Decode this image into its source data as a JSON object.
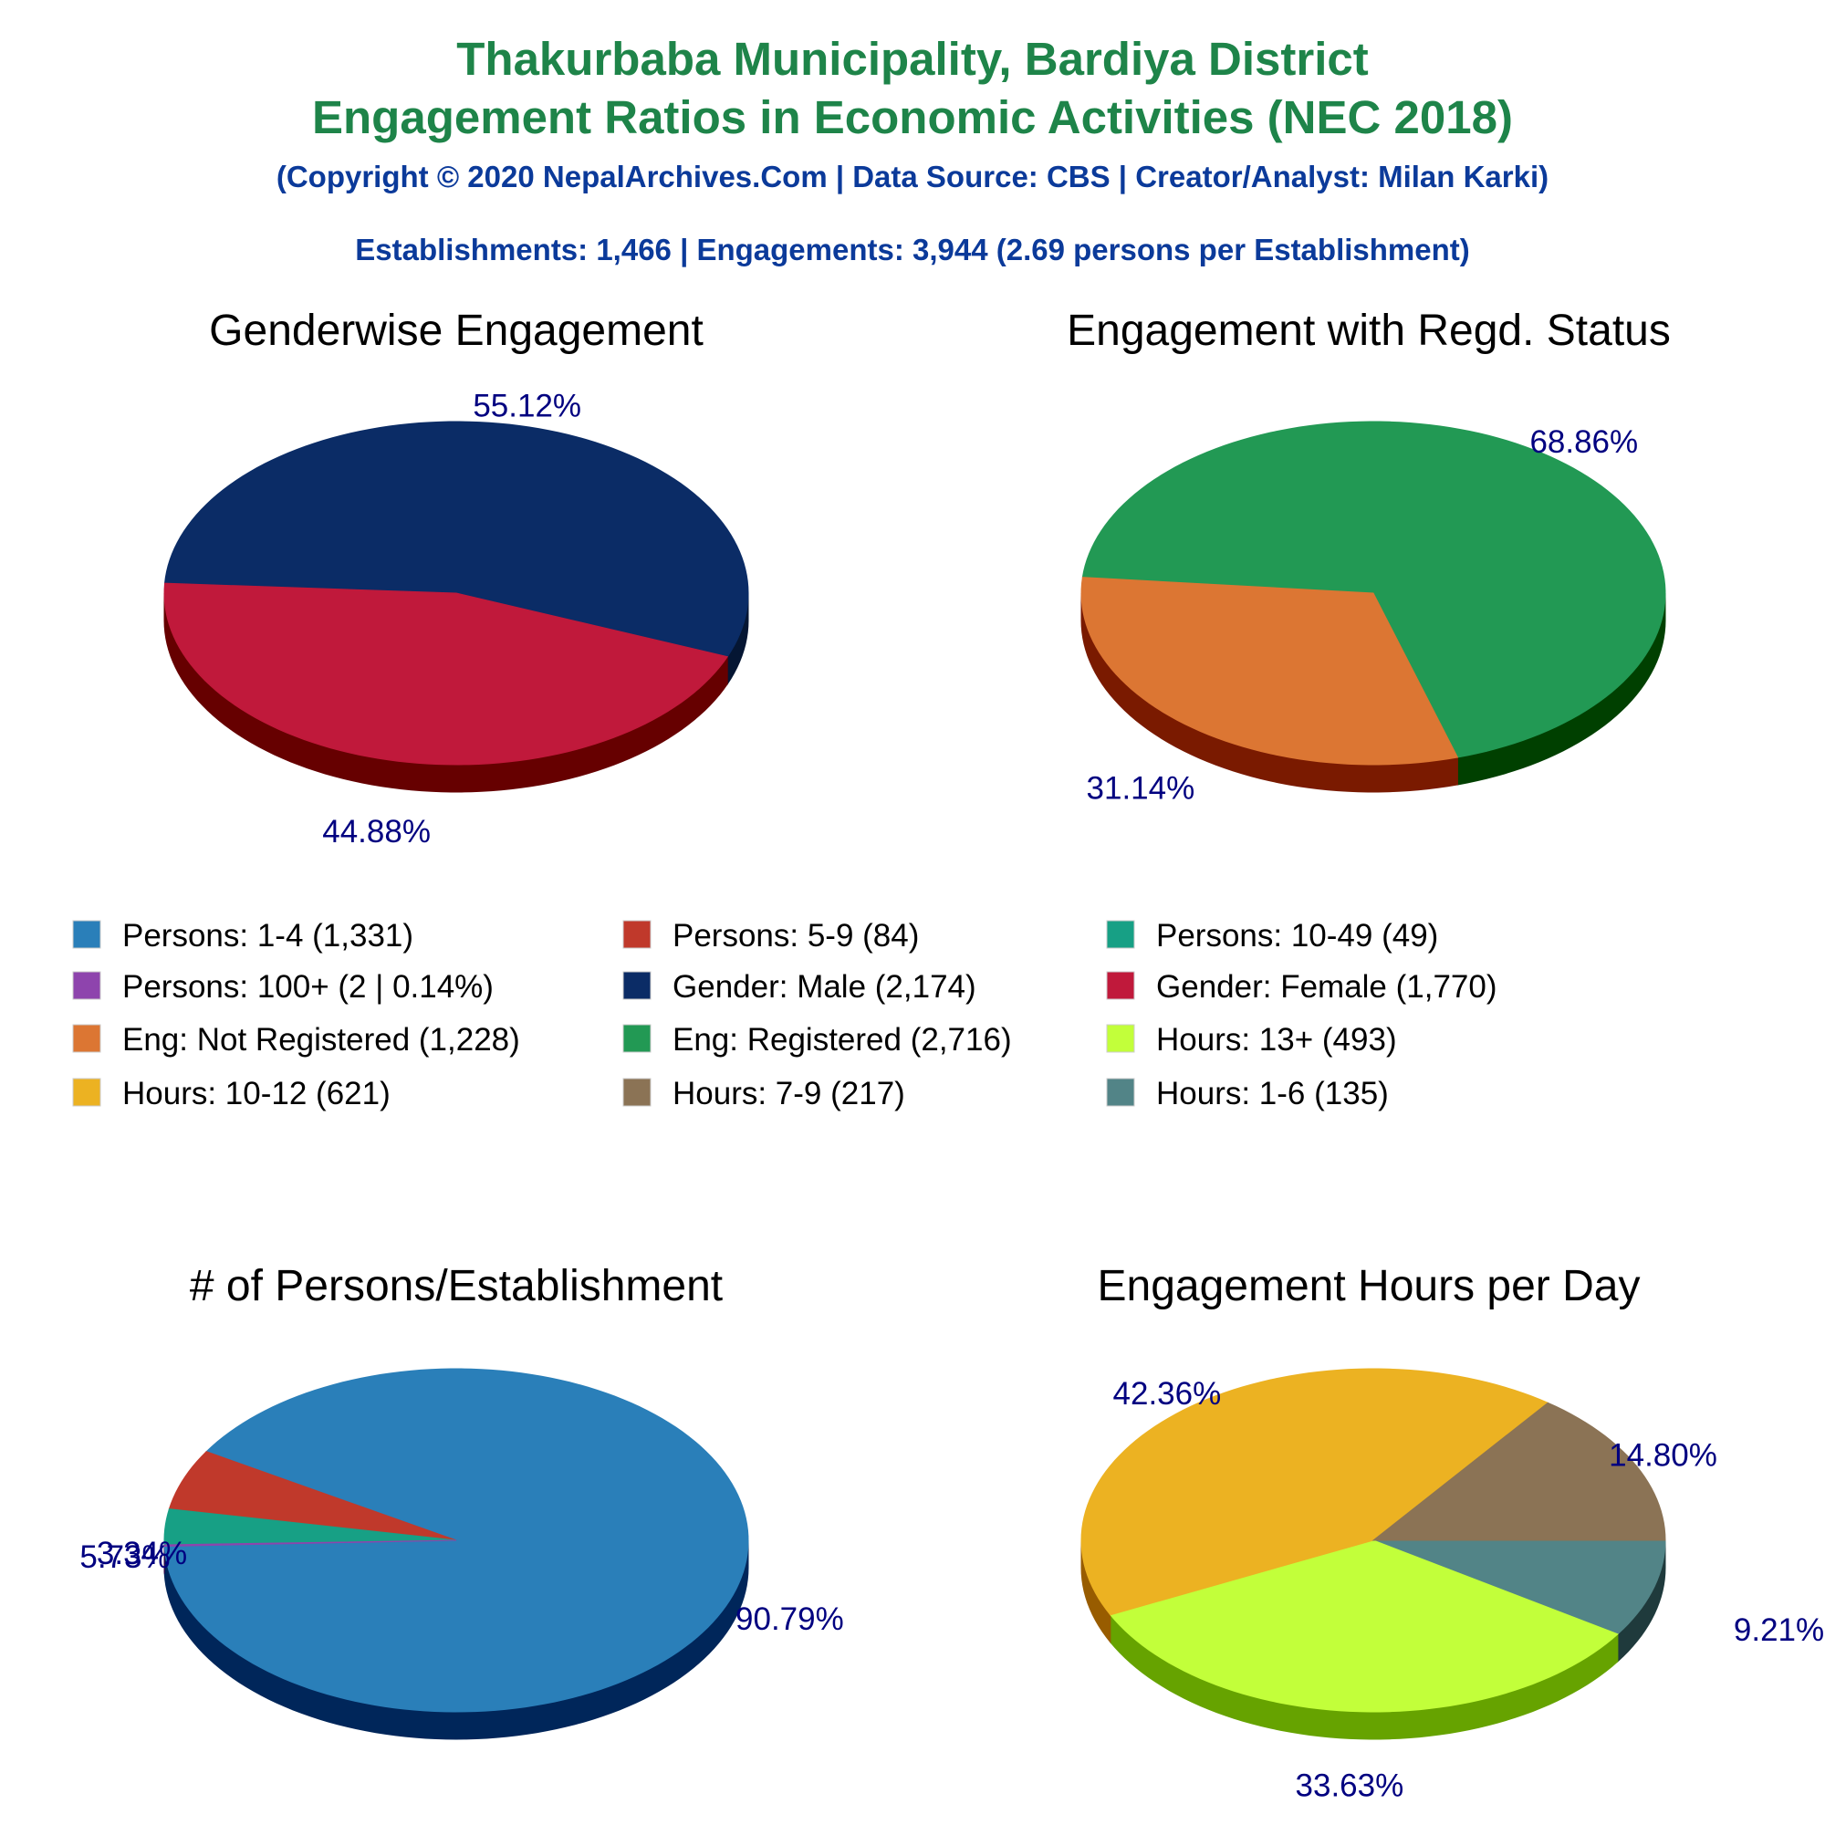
{
  "header": {
    "title_line1": "Thakurbaba Municipality, Bardiya District",
    "title_line2": "Engagement Ratios in Economic Activities (NEC 2018)",
    "copyright": "(Copyright © 2020 NepalArchives.Com | Data Source: CBS | Creator/Analyst: Milan Karki)",
    "summary": "Establishments: 1,466 | Engagements: 3,944 (2.69 persons per Establishment)"
  },
  "legend": {
    "items": [
      {
        "label": "Persons: 1-4 (1,331)",
        "color": "#2a7fb9"
      },
      {
        "label": "Persons: 5-9 (84)",
        "color": "#c0392b"
      },
      {
        "label": "Persons: 10-49 (49)",
        "color": "#17a085"
      },
      {
        "label": "Persons: 100+ (2 | 0.14%)",
        "color": "#8e44ad"
      },
      {
        "label": "Gender: Male (2,174)",
        "color": "#0b2c66"
      },
      {
        "label": "Gender: Female (1,770)",
        "color": "#c0193b"
      },
      {
        "label": "Eng: Not Registered (1,228)",
        "color": "#dc7633"
      },
      {
        "label": "Eng: Registered (2,716)",
        "color": "#229954"
      },
      {
        "label": "Hours: 13+ (493)",
        "color": "#c2ff3a"
      },
      {
        "label": "Hours: 10-12 (621)",
        "color": "#ecb222"
      },
      {
        "label": "Hours: 7-9 (217)",
        "color": "#8b7355"
      },
      {
        "label": "Hours: 1-6 (135)",
        "color": "#528487"
      }
    ]
  },
  "chart_data": [
    {
      "type": "pie",
      "title": "Genderwise Engagement",
      "slices": [
        {
          "name": "Gender: Male",
          "value": 2174,
          "percent": 55.12,
          "label": "55.12%",
          "color": "#0b2c66",
          "side_color": "#051633"
        },
        {
          "name": "Gender: Female",
          "value": 1770,
          "percent": 44.88,
          "label": "44.88%",
          "color": "#c0193b",
          "side_color": "#660000"
        }
      ]
    },
    {
      "type": "pie",
      "title": "Engagement with Regd. Status",
      "slices": [
        {
          "name": "Eng: Registered",
          "value": 2716,
          "percent": 68.86,
          "label": "68.86%",
          "color": "#229954",
          "side_color": "#004000"
        },
        {
          "name": "Eng: Not Registered",
          "value": 1228,
          "percent": 31.14,
          "label": "31.14%",
          "color": "#dc7633",
          "side_color": "#7a1a00"
        }
      ]
    },
    {
      "type": "pie",
      "title": "# of Persons/Establishment",
      "slices": [
        {
          "name": "Persons: 1-4",
          "value": 1331,
          "percent": 90.79,
          "label": "90.79%",
          "color": "#2a7fb9",
          "side_color": "#00265a"
        },
        {
          "name": "Persons: 5-9",
          "value": 84,
          "percent": 5.73,
          "label": "5.73%",
          "color": "#c0392b",
          "side_color": "#6a0000"
        },
        {
          "name": "Persons: 10-49",
          "value": 49,
          "percent": 3.34,
          "label": "3.34%",
          "color": "#17a085",
          "side_color": "#003a2a"
        },
        {
          "name": "Persons: 100+",
          "value": 2,
          "percent": 0.14,
          "label": "",
          "color": "#8e44ad",
          "side_color": "#3a004a"
        }
      ]
    },
    {
      "type": "pie",
      "title": "Engagement Hours per Day",
      "slices": [
        {
          "name": "Hours: 1-6",
          "value": 135,
          "percent": 9.21,
          "label": "9.21%",
          "color": "#528487",
          "side_color": "#1f3a3c"
        },
        {
          "name": "Hours: 13+",
          "value": 493,
          "percent": 33.63,
          "label": "33.63%",
          "color": "#c2ff3a",
          "side_color": "#66a300"
        },
        {
          "name": "Hours: 10-12",
          "value": 621,
          "percent": 42.36,
          "label": "42.36%",
          "color": "#ecb222",
          "side_color": "#985c00"
        },
        {
          "name": "Hours: 7-9",
          "value": 217,
          "percent": 14.8,
          "label": "14.80%",
          "color": "#8b7355",
          "side_color": "#3f2f1a"
        }
      ]
    }
  ]
}
